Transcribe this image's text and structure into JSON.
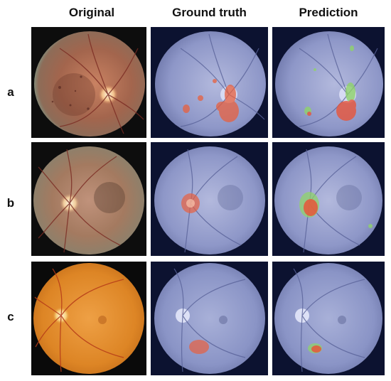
{
  "columns": [
    {
      "key": "original",
      "label": "Original"
    },
    {
      "key": "ground_truth",
      "label": "Ground truth"
    },
    {
      "key": "prediction",
      "label": "Prediction"
    }
  ],
  "rows": [
    {
      "label": "a"
    },
    {
      "label": "b"
    },
    {
      "label": "c"
    }
  ],
  "colors": {
    "original_a": "#b5705a",
    "original_b": "#a97b60",
    "original_c": "#e4892a",
    "overlay_blue": "#8fa0d8",
    "overlay_dark": "#0c1230",
    "hot_red": "#e8553a",
    "hot_green": "#8fd36a"
  }
}
